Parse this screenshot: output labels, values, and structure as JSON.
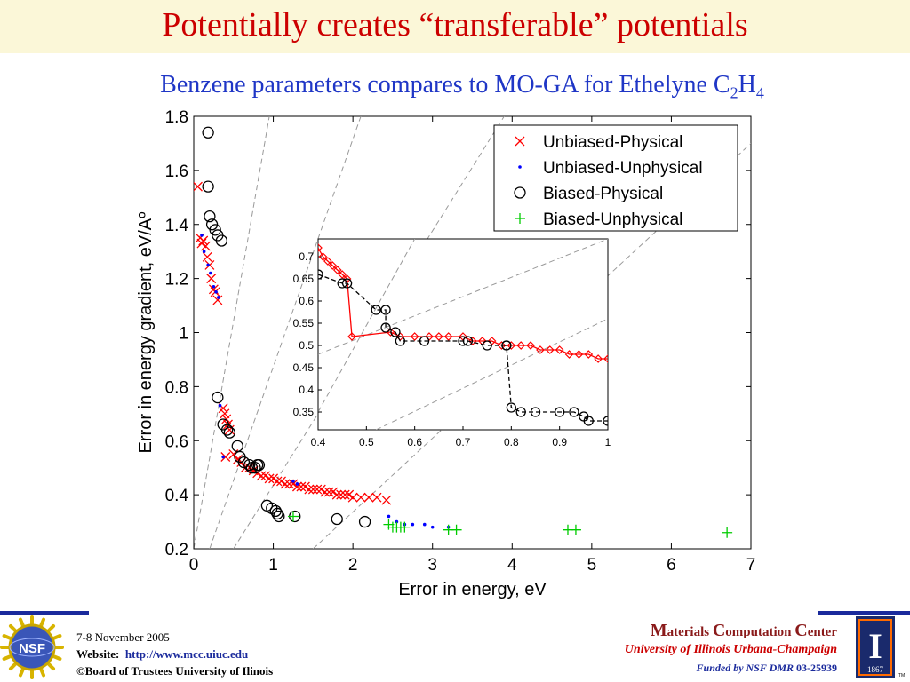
{
  "slide": {
    "title": "Potentially creates “transferable” potentials",
    "subtitle_main": "Benzene parameters compares to MO-GA for Ethelyne C",
    "subtitle_sub1": "2",
    "subtitle_mid": "H",
    "subtitle_sub2": "4"
  },
  "footer": {
    "date": "7-8 November 2005",
    "website_label": "Website:",
    "website_url": "http://www.mcc.uiuc.edu",
    "copyright": "©Board of Trustees University of Ilinois",
    "mcc_M": "M",
    "mcc_aterials": "aterials ",
    "mcc_C1": "C",
    "mcc_omputation": "omputation ",
    "mcc_C2": "C",
    "mcc_enter": "enter",
    "university": "University of Illinois Urbana-Champaign",
    "funded_by": "Funded by NSF DMR",
    "grant": "03-25939",
    "nsf_logo_text": "NSF",
    "uiuc_logo_letter": "I",
    "uiuc_logo_year": "1867",
    "tm": "TM"
  },
  "colors": {
    "title_red": "#cc0000",
    "subtitle_blue": "#1f36c6",
    "unbiased_physical": "#ff0000",
    "unbiased_unphysical": "#0000ff",
    "biased_physical": "#000000",
    "biased_unphysical": "#00cc00",
    "footer_line": "#1a2a9c"
  },
  "chart_data": [
    {
      "type": "scatter",
      "xlabel": "Error in energy, eV",
      "ylabel": "Error in energy gradient, eV/Aº",
      "xlim": [
        0,
        7
      ],
      "ylim": [
        0.2,
        1.8
      ],
      "xticks": [
        0,
        1,
        2,
        3,
        4,
        5,
        6,
        7
      ],
      "yticks": [
        0.2,
        0.4,
        0.6,
        0.8,
        1,
        1.2,
        1.4,
        1.6,
        1.8
      ],
      "grid": false,
      "legend_position": "top-right",
      "reference_lines": [
        {
          "x": [
            0.0,
            0.95
          ],
          "y": [
            0.2,
            1.8
          ]
        },
        {
          "x": [
            0.2,
            2.1
          ],
          "y": [
            0.2,
            1.8
          ]
        },
        {
          "x": [
            0.5,
            3.9
          ],
          "y": [
            0.2,
            1.8
          ]
        },
        {
          "x": [
            1.5,
            7.0
          ],
          "y": [
            0.2,
            1.7
          ]
        }
      ],
      "series": [
        {
          "name": "Unbiased-Physical",
          "marker": "x",
          "color": "#ff0000",
          "x": [
            0.05,
            0.08,
            0.1,
            0.12,
            0.15,
            0.17,
            0.2,
            0.22,
            0.25,
            0.27,
            0.3,
            0.37,
            0.39,
            0.41,
            0.43,
            0.45,
            0.4,
            0.5,
            0.55,
            0.6,
            0.65,
            0.7,
            0.75,
            0.8,
            0.85,
            0.9,
            0.95,
            1.0,
            1.05,
            1.1,
            1.15,
            1.2,
            1.25,
            1.3,
            1.35,
            1.4,
            1.45,
            1.5,
            1.55,
            1.6,
            1.65,
            1.7,
            1.75,
            1.8,
            1.85,
            1.9,
            1.95,
            2.0,
            2.1,
            2.2,
            2.3,
            2.42
          ],
          "y": [
            1.54,
            1.35,
            1.33,
            1.34,
            1.32,
            1.28,
            1.25,
            1.2,
            1.16,
            1.15,
            1.12,
            0.72,
            0.7,
            0.68,
            0.66,
            0.64,
            0.54,
            0.55,
            0.53,
            0.52,
            0.5,
            0.5,
            0.49,
            0.48,
            0.47,
            0.47,
            0.46,
            0.46,
            0.45,
            0.45,
            0.44,
            0.44,
            0.44,
            0.43,
            0.43,
            0.43,
            0.42,
            0.42,
            0.42,
            0.42,
            0.41,
            0.41,
            0.41,
            0.4,
            0.4,
            0.4,
            0.4,
            0.39,
            0.39,
            0.39,
            0.39,
            0.38
          ]
        },
        {
          "name": "Unbiased-Unphysical",
          "marker": "dot",
          "color": "#0000ff",
          "x": [
            0.1,
            0.13,
            0.18,
            0.21,
            0.25,
            0.28,
            0.31,
            0.33,
            0.37,
            1.25,
            1.3,
            2.45,
            2.55,
            2.65,
            2.75,
            2.9,
            3.0,
            3.2
          ],
          "y": [
            1.36,
            1.3,
            1.25,
            1.22,
            1.17,
            1.15,
            1.13,
            0.73,
            0.54,
            0.45,
            0.44,
            0.32,
            0.3,
            0.29,
            0.29,
            0.29,
            0.28,
            0.28
          ]
        },
        {
          "name": "Biased-Physical",
          "marker": "o",
          "color": "#000000",
          "x": [
            0.18,
            0.18,
            0.2,
            0.23,
            0.27,
            0.3,
            0.35,
            0.3,
            0.37,
            0.42,
            0.45,
            0.55,
            0.58,
            0.63,
            0.7,
            0.73,
            0.77,
            0.8,
            0.82,
            0.92,
            0.98,
            1.03,
            1.05,
            1.07,
            1.8,
            2.15,
            1.27
          ],
          "y": [
            1.74,
            1.54,
            1.43,
            1.4,
            1.38,
            1.36,
            1.34,
            0.76,
            0.66,
            0.64,
            0.63,
            0.58,
            0.54,
            0.52,
            0.51,
            0.5,
            0.5,
            0.51,
            0.51,
            0.36,
            0.35,
            0.34,
            0.33,
            0.32,
            0.31,
            0.3,
            0.32
          ]
        },
        {
          "name": "Biased-Unphysical",
          "marker": "+",
          "color": "#00cc00",
          "x": [
            1.25,
            2.45,
            2.5,
            2.55,
            2.6,
            2.65,
            3.2,
            3.3,
            4.7,
            4.8,
            6.7
          ],
          "y": [
            0.32,
            0.29,
            0.28,
            0.28,
            0.28,
            0.28,
            0.27,
            0.27,
            0.27,
            0.27,
            0.26
          ]
        }
      ]
    },
    {
      "type": "line",
      "role": "inset",
      "xlim": [
        0.4,
        1.0
      ],
      "ylim": [
        0.31,
        0.74
      ],
      "xticks": [
        0.4,
        0.5,
        0.6,
        0.7,
        0.8,
        0.9,
        1
      ],
      "yticks": [
        0.35,
        0.4,
        0.45,
        0.5,
        0.55,
        0.6,
        0.65,
        0.7
      ],
      "xticklabels": [
        "0.4",
        "0.5",
        "0.6",
        "0.7",
        "0.8",
        "0.9",
        "1"
      ],
      "yticklabels": [
        "0.35",
        "0.4",
        "0.45",
        "0.5",
        "0.55",
        "0.6",
        "0.65",
        "0.7"
      ],
      "reference_lines": [
        {
          "x": [
            0.4,
            0.6
          ],
          "y": [
            0.35,
            0.74
          ]
        },
        {
          "x": [
            0.4,
            1.0
          ],
          "y": [
            0.48,
            0.74
          ]
        },
        {
          "x": [
            0.52,
            1.0
          ],
          "y": [
            0.31,
            0.56
          ]
        }
      ],
      "series": [
        {
          "marker": "diamond",
          "color": "#ff0000",
          "line": "solid",
          "x": [
            0.4,
            0.41,
            0.42,
            0.43,
            0.44,
            0.45,
            0.46,
            0.47,
            0.55,
            0.57,
            0.6,
            0.63,
            0.65,
            0.67,
            0.7,
            0.72,
            0.74,
            0.76,
            0.78,
            0.8,
            0.82,
            0.84,
            0.86,
            0.88,
            0.9,
            0.92,
            0.94,
            0.96,
            0.98,
            1.0
          ],
          "y": [
            0.72,
            0.7,
            0.69,
            0.68,
            0.67,
            0.66,
            0.65,
            0.52,
            0.53,
            0.52,
            0.52,
            0.52,
            0.52,
            0.52,
            0.52,
            0.51,
            0.51,
            0.51,
            0.5,
            0.5,
            0.5,
            0.5,
            0.49,
            0.49,
            0.49,
            0.48,
            0.48,
            0.48,
            0.47,
            0.47
          ]
        },
        {
          "marker": "o",
          "color": "#000000",
          "line": "dashed",
          "x": [
            0.4,
            0.45,
            0.46,
            0.52,
            0.54,
            0.54,
            0.56,
            0.57,
            0.62,
            0.7,
            0.71,
            0.75,
            0.79,
            0.79,
            0.8,
            0.82,
            0.85,
            0.9,
            0.93,
            0.95,
            0.96,
            1.0
          ],
          "y": [
            0.66,
            0.64,
            0.64,
            0.58,
            0.58,
            0.54,
            0.53,
            0.51,
            0.51,
            0.51,
            0.51,
            0.5,
            0.5,
            0.5,
            0.36,
            0.35,
            0.35,
            0.35,
            0.35,
            0.34,
            0.33,
            0.33
          ]
        }
      ]
    }
  ]
}
